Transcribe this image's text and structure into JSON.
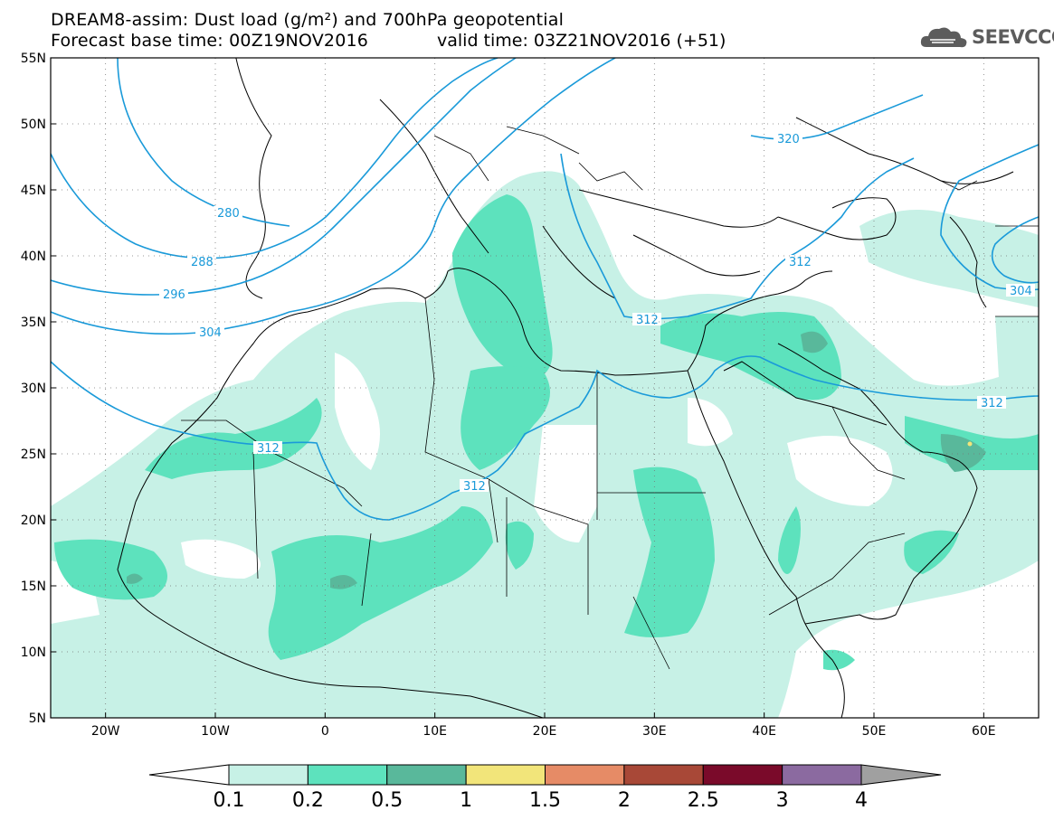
{
  "header": {
    "title_line1": "DREAM8-assim: Dust load (g/m²) and 700hPa geopotential",
    "title_line2": "Forecast base time: 00Z19NOV2016",
    "valid_time": "valid time: 03Z21NOV2016 (+51)",
    "logo_text": "SEEVCCC",
    "logo_icon": "cloud-icon"
  },
  "map": {
    "lon_range": [
      -25,
      65
    ],
    "lat_range": [
      5,
      55
    ],
    "x_ticks": [
      "20W",
      "10W",
      "0",
      "10E",
      "20E",
      "30E",
      "40E",
      "50E",
      "60E"
    ],
    "y_ticks": [
      "55N",
      "50N",
      "45N",
      "40N",
      "35N",
      "30N",
      "25N",
      "20N",
      "15N",
      "10N",
      "5N"
    ],
    "contour_color": "#1a9ad9",
    "contour_labels": [
      "280",
      "288",
      "296",
      "304",
      "312",
      "312",
      "312",
      "312",
      "312",
      "320",
      "304"
    ]
  },
  "colorbar": {
    "levels": [
      "0.1",
      "0.2",
      "0.5",
      "1",
      "1.5",
      "2",
      "2.5",
      "3",
      "4"
    ],
    "colors": [
      "#ffffff",
      "#c7f1e6",
      "#5de2bd",
      "#59b89b",
      "#f2e57a",
      "#e68b66",
      "#a84837",
      "#7a0a2a",
      "#8b6aa0",
      "#a0a0a0"
    ]
  }
}
